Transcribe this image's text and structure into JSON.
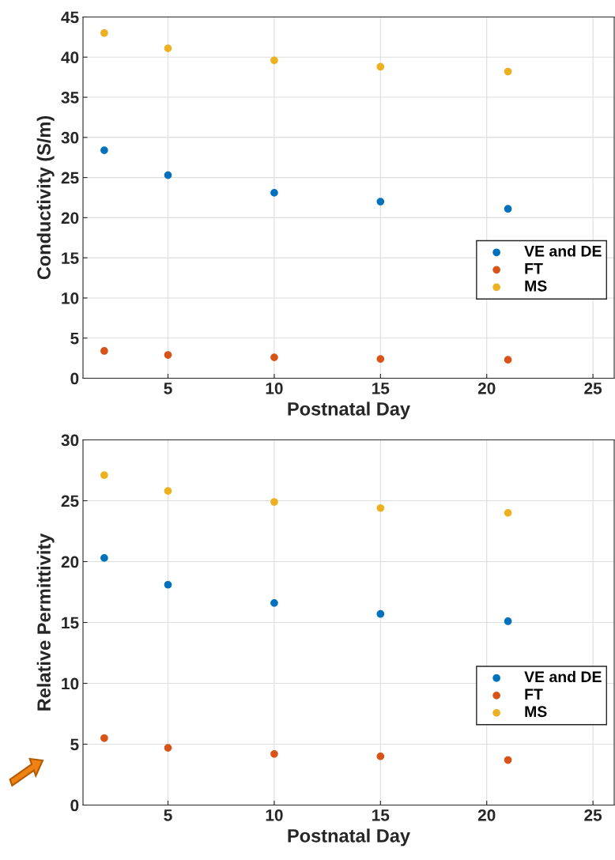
{
  "chart_data": [
    {
      "type": "scatter",
      "xlabel": "Postnatal Day",
      "ylabel": "Conductivity (S/m)",
      "x": [
        2,
        5,
        10,
        15,
        21
      ],
      "xlim": [
        1,
        26
      ],
      "xticks": [
        5,
        10,
        15,
        20,
        25
      ],
      "ylim": [
        0,
        45
      ],
      "yticks": [
        0,
        5,
        10,
        15,
        20,
        25,
        30,
        35,
        40,
        45
      ],
      "grid": true,
      "legend": "right",
      "marker": "circle",
      "series": [
        {
          "name": "VE and DE",
          "color": "#0072bd",
          "values": [
            28.4,
            25.3,
            23.1,
            22.0,
            21.1
          ]
        },
        {
          "name": "FT",
          "color": "#d95319",
          "values": [
            3.4,
            2.9,
            2.6,
            2.4,
            2.3
          ]
        },
        {
          "name": "MS",
          "color": "#edb120",
          "values": [
            43.0,
            41.1,
            39.6,
            38.8,
            38.2
          ]
        }
      ]
    },
    {
      "type": "scatter",
      "xlabel": "Postnatal Day",
      "ylabel": "Relative Permittivity",
      "x": [
        2,
        5,
        10,
        15,
        21
      ],
      "xlim": [
        1,
        26
      ],
      "xticks": [
        5,
        10,
        15,
        20,
        25
      ],
      "ylim": [
        0,
        30
      ],
      "yticks": [
        0,
        5,
        10,
        15,
        20,
        25,
        30
      ],
      "grid": true,
      "legend": "right",
      "marker": "circle",
      "series": [
        {
          "name": "VE and DE",
          "color": "#0072bd",
          "values": [
            20.3,
            18.1,
            16.6,
            15.7,
            15.1
          ]
        },
        {
          "name": "FT",
          "color": "#d95319",
          "values": [
            5.5,
            4.7,
            4.2,
            4.0,
            3.7
          ]
        },
        {
          "name": "MS",
          "color": "#edb120",
          "values": [
            27.1,
            25.8,
            24.9,
            24.4,
            24.0
          ]
        }
      ]
    }
  ]
}
